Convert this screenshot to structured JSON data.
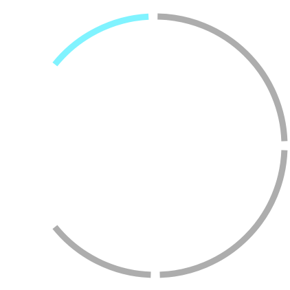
{
  "loader": {
    "icon": "segmented-ring-spinner",
    "segments_total": 4,
    "segments_highlighted": 1,
    "highlight_color": "#80F3FF",
    "idle_color": "#ADADAD"
  }
}
